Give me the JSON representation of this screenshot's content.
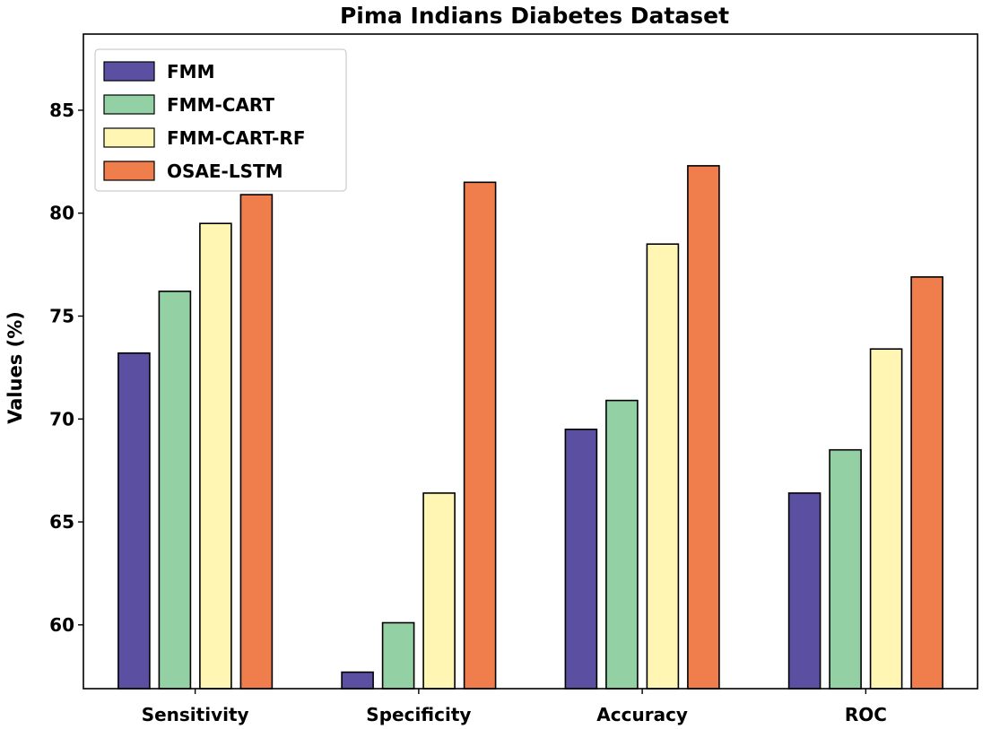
{
  "chart_data": {
    "type": "bar",
    "title": "Pima Indians Diabetes Dataset",
    "xlabel": "",
    "ylabel": "Values (%)",
    "categories": [
      "Sensitivity",
      "Specificity",
      "Accuracy",
      "ROC"
    ],
    "series": [
      {
        "name": "FMM",
        "color": "#5b4fa1",
        "values": [
          73.2,
          57.7,
          69.5,
          66.4
        ]
      },
      {
        "name": "FMM-CART",
        "color": "#93d1a4",
        "values": [
          76.2,
          60.1,
          70.9,
          68.5
        ]
      },
      {
        "name": "FMM-CART-RF",
        "color": "#fff6b3",
        "values": [
          79.5,
          66.4,
          78.5,
          73.4
        ]
      },
      {
        "name": "OSAE-LSTM",
        "color": "#f07d4c",
        "values": [
          80.9,
          81.5,
          82.3,
          76.9
        ]
      }
    ],
    "ylim": [
      56.9,
      88.7
    ],
    "yticks": [
      60,
      65,
      70,
      75,
      80,
      85
    ],
    "grid": false,
    "legend_position": "upper-left"
  }
}
